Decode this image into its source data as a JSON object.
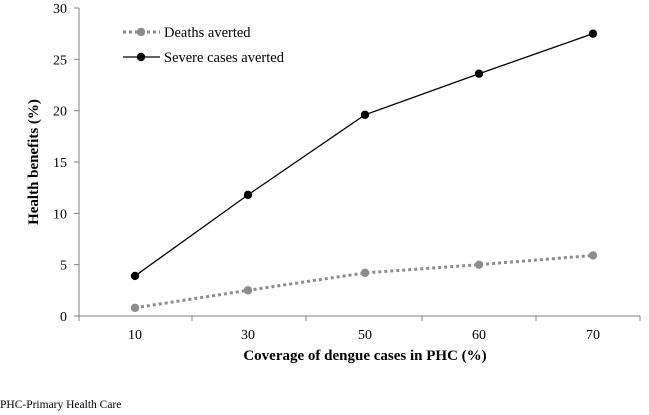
{
  "chart_data": {
    "type": "line",
    "categories": [
      "10",
      "30",
      "50",
      "60",
      "70"
    ],
    "series": [
      {
        "name": "Deaths averted",
        "values": [
          0.8,
          2.5,
          4.2,
          5.0,
          5.9
        ],
        "color": "#8c8c8c",
        "style": "dotted"
      },
      {
        "name": "Severe cases averted",
        "values": [
          3.9,
          11.8,
          19.6,
          23.6,
          27.5
        ],
        "color": "#000000",
        "style": "solid"
      }
    ],
    "xlabel": "Coverage of dengue cases in PHC (%)",
    "ylabel": "Health benefits (%)",
    "ylim": [
      0,
      30
    ],
    "yticks": [
      0,
      5,
      10,
      15,
      20,
      25,
      30
    ],
    "legend": "top-left",
    "grid": false
  },
  "footnote": "PHC-Primary Health Care"
}
